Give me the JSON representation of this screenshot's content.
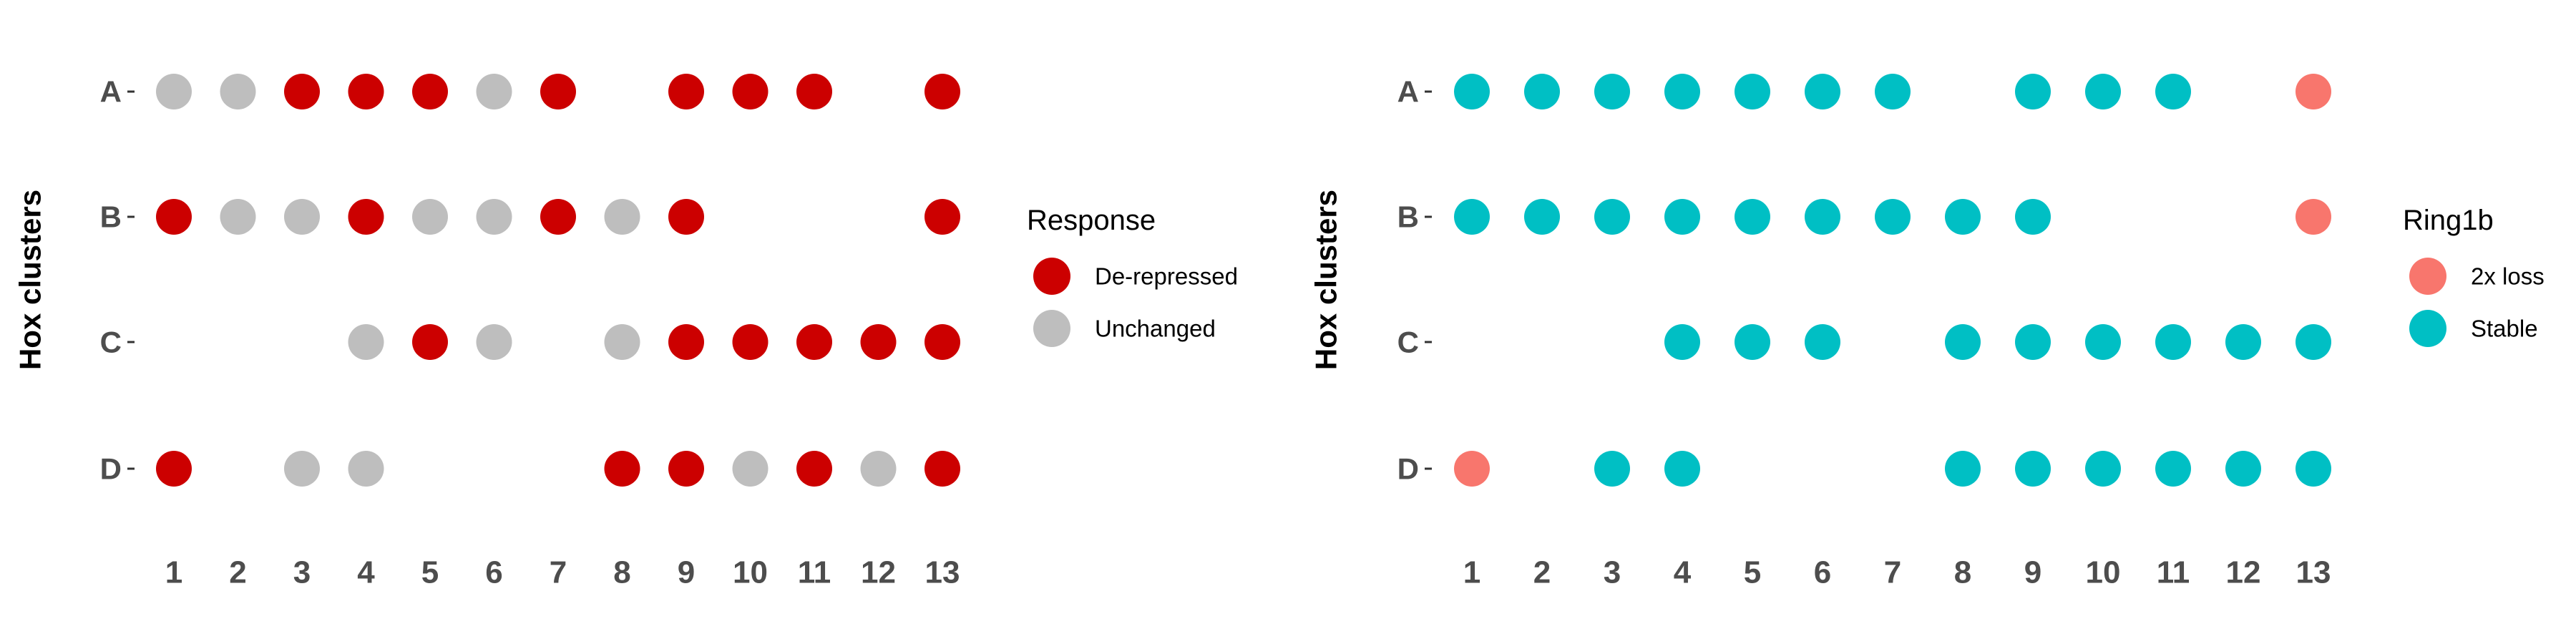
{
  "chart_data": [
    {
      "type": "scatter",
      "ylabel": "Hox clusters",
      "x_categories": [
        "1",
        "2",
        "3",
        "4",
        "5",
        "6",
        "7",
        "8",
        "9",
        "10",
        "11",
        "12",
        "13"
      ],
      "y_categories": [
        "A",
        "B",
        "C",
        "D"
      ],
      "legend": {
        "title": "Response",
        "placement": "right",
        "entries": [
          {
            "label": "De-repressed",
            "color": "#CC0000"
          },
          {
            "label": "Unchanged",
            "color": "#BEBEBE"
          }
        ]
      },
      "points": [
        {
          "cluster": "A",
          "paralog": 1,
          "value": "Unchanged"
        },
        {
          "cluster": "A",
          "paralog": 2,
          "value": "Unchanged"
        },
        {
          "cluster": "A",
          "paralog": 3,
          "value": "De-repressed"
        },
        {
          "cluster": "A",
          "paralog": 4,
          "value": "De-repressed"
        },
        {
          "cluster": "A",
          "paralog": 5,
          "value": "De-repressed"
        },
        {
          "cluster": "A",
          "paralog": 6,
          "value": "Unchanged"
        },
        {
          "cluster": "A",
          "paralog": 7,
          "value": "De-repressed"
        },
        {
          "cluster": "A",
          "paralog": 9,
          "value": "De-repressed"
        },
        {
          "cluster": "A",
          "paralog": 10,
          "value": "De-repressed"
        },
        {
          "cluster": "A",
          "paralog": 11,
          "value": "De-repressed"
        },
        {
          "cluster": "A",
          "paralog": 13,
          "value": "De-repressed"
        },
        {
          "cluster": "B",
          "paralog": 1,
          "value": "De-repressed"
        },
        {
          "cluster": "B",
          "paralog": 2,
          "value": "Unchanged"
        },
        {
          "cluster": "B",
          "paralog": 3,
          "value": "Unchanged"
        },
        {
          "cluster": "B",
          "paralog": 4,
          "value": "De-repressed"
        },
        {
          "cluster": "B",
          "paralog": 5,
          "value": "Unchanged"
        },
        {
          "cluster": "B",
          "paralog": 6,
          "value": "Unchanged"
        },
        {
          "cluster": "B",
          "paralog": 7,
          "value": "De-repressed"
        },
        {
          "cluster": "B",
          "paralog": 8,
          "value": "Unchanged"
        },
        {
          "cluster": "B",
          "paralog": 9,
          "value": "De-repressed"
        },
        {
          "cluster": "B",
          "paralog": 13,
          "value": "De-repressed"
        },
        {
          "cluster": "C",
          "paralog": 4,
          "value": "Unchanged"
        },
        {
          "cluster": "C",
          "paralog": 5,
          "value": "De-repressed"
        },
        {
          "cluster": "C",
          "paralog": 6,
          "value": "Unchanged"
        },
        {
          "cluster": "C",
          "paralog": 8,
          "value": "Unchanged"
        },
        {
          "cluster": "C",
          "paralog": 9,
          "value": "De-repressed"
        },
        {
          "cluster": "C",
          "paralog": 10,
          "value": "De-repressed"
        },
        {
          "cluster": "C",
          "paralog": 11,
          "value": "De-repressed"
        },
        {
          "cluster": "C",
          "paralog": 12,
          "value": "De-repressed"
        },
        {
          "cluster": "C",
          "paralog": 13,
          "value": "De-repressed"
        },
        {
          "cluster": "D",
          "paralog": 1,
          "value": "De-repressed"
        },
        {
          "cluster": "D",
          "paralog": 3,
          "value": "Unchanged"
        },
        {
          "cluster": "D",
          "paralog": 4,
          "value": "Unchanged"
        },
        {
          "cluster": "D",
          "paralog": 8,
          "value": "De-repressed"
        },
        {
          "cluster": "D",
          "paralog": 9,
          "value": "De-repressed"
        },
        {
          "cluster": "D",
          "paralog": 10,
          "value": "Unchanged"
        },
        {
          "cluster": "D",
          "paralog": 11,
          "value": "De-repressed"
        },
        {
          "cluster": "D",
          "paralog": 12,
          "value": "Unchanged"
        },
        {
          "cluster": "D",
          "paralog": 13,
          "value": "De-repressed"
        }
      ]
    },
    {
      "type": "scatter",
      "ylabel": "Hox clusters",
      "x_categories": [
        "1",
        "2",
        "3",
        "4",
        "5",
        "6",
        "7",
        "8",
        "9",
        "10",
        "11",
        "12",
        "13"
      ],
      "y_categories": [
        "A",
        "B",
        "C",
        "D"
      ],
      "legend": {
        "title": "Ring1b",
        "placement": "right",
        "entries": [
          {
            "label": "2x loss",
            "color": "#F8766D"
          },
          {
            "label": "Stable",
            "color": "#00BFC4"
          }
        ]
      },
      "points": [
        {
          "cluster": "A",
          "paralog": 1,
          "value": "Stable"
        },
        {
          "cluster": "A",
          "paralog": 2,
          "value": "Stable"
        },
        {
          "cluster": "A",
          "paralog": 3,
          "value": "Stable"
        },
        {
          "cluster": "A",
          "paralog": 4,
          "value": "Stable"
        },
        {
          "cluster": "A",
          "paralog": 5,
          "value": "Stable"
        },
        {
          "cluster": "A",
          "paralog": 6,
          "value": "Stable"
        },
        {
          "cluster": "A",
          "paralog": 7,
          "value": "Stable"
        },
        {
          "cluster": "A",
          "paralog": 9,
          "value": "Stable"
        },
        {
          "cluster": "A",
          "paralog": 10,
          "value": "Stable"
        },
        {
          "cluster": "A",
          "paralog": 11,
          "value": "Stable"
        },
        {
          "cluster": "A",
          "paralog": 13,
          "value": "2x loss"
        },
        {
          "cluster": "B",
          "paralog": 1,
          "value": "Stable"
        },
        {
          "cluster": "B",
          "paralog": 2,
          "value": "Stable"
        },
        {
          "cluster": "B",
          "paralog": 3,
          "value": "Stable"
        },
        {
          "cluster": "B",
          "paralog": 4,
          "value": "Stable"
        },
        {
          "cluster": "B",
          "paralog": 5,
          "value": "Stable"
        },
        {
          "cluster": "B",
          "paralog": 6,
          "value": "Stable"
        },
        {
          "cluster": "B",
          "paralog": 7,
          "value": "Stable"
        },
        {
          "cluster": "B",
          "paralog": 8,
          "value": "Stable"
        },
        {
          "cluster": "B",
          "paralog": 9,
          "value": "Stable"
        },
        {
          "cluster": "B",
          "paralog": 13,
          "value": "2x loss"
        },
        {
          "cluster": "C",
          "paralog": 4,
          "value": "Stable"
        },
        {
          "cluster": "C",
          "paralog": 5,
          "value": "Stable"
        },
        {
          "cluster": "C",
          "paralog": 6,
          "value": "Stable"
        },
        {
          "cluster": "C",
          "paralog": 8,
          "value": "Stable"
        },
        {
          "cluster": "C",
          "paralog": 9,
          "value": "Stable"
        },
        {
          "cluster": "C",
          "paralog": 10,
          "value": "Stable"
        },
        {
          "cluster": "C",
          "paralog": 11,
          "value": "Stable"
        },
        {
          "cluster": "C",
          "paralog": 12,
          "value": "Stable"
        },
        {
          "cluster": "C",
          "paralog": 13,
          "value": "Stable"
        },
        {
          "cluster": "D",
          "paralog": 1,
          "value": "2x loss"
        },
        {
          "cluster": "D",
          "paralog": 3,
          "value": "Stable"
        },
        {
          "cluster": "D",
          "paralog": 4,
          "value": "Stable"
        },
        {
          "cluster": "D",
          "paralog": 8,
          "value": "Stable"
        },
        {
          "cluster": "D",
          "paralog": 9,
          "value": "Stable"
        },
        {
          "cluster": "D",
          "paralog": 10,
          "value": "Stable"
        },
        {
          "cluster": "D",
          "paralog": 11,
          "value": "Stable"
        },
        {
          "cluster": "D",
          "paralog": 12,
          "value": "Stable"
        },
        {
          "cluster": "D",
          "paralog": 13,
          "value": "Stable"
        }
      ]
    }
  ]
}
